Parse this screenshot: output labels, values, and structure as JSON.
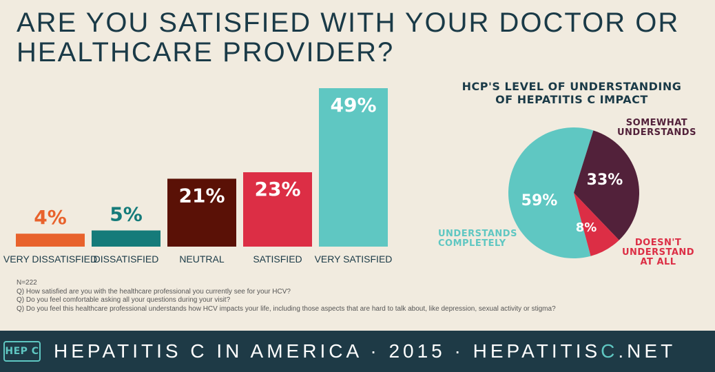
{
  "page": {
    "title_line1": "ARE YOU SATISFIED WITH YOUR DOCTOR OR",
    "title_line2": "HEALTHCARE PROVIDER?"
  },
  "colors": {
    "very_dissatisfied": "#e8622c",
    "dissatisfied": "#157b7a",
    "neutral": "#5a1106",
    "satisfied": "#dc2e45",
    "very_satisfied": "#5fc7c2",
    "pie_completely": "#5fc7c2",
    "pie_somewhat": "#52213a",
    "pie_not": "#dc2e45",
    "dark": "#1a3a47"
  },
  "chart_data": [
    {
      "type": "bar",
      "title": "ARE YOU SATISFIED WITH YOUR DOCTOR OR HEALTHCARE PROVIDER?",
      "categories": [
        "VERY DISSATISFIED",
        "DISSATISFIED",
        "NEUTRAL",
        "SATISFIED",
        "VERY SATISFIED"
      ],
      "values": [
        4,
        5,
        21,
        23,
        49
      ],
      "value_labels": [
        "4%",
        "5%",
        "21%",
        "23%",
        "49%"
      ],
      "unit": "%",
      "ylim": [
        0,
        49
      ]
    },
    {
      "type": "pie",
      "title_line1": "HCP'S LEVEL OF UNDERSTANDING",
      "title_line2": "OF HEPATITIS C IMPACT",
      "slices": [
        {
          "label_line1": "UNDERSTANDS",
          "label_line2": "COMPLETELY",
          "label_line3": "",
          "value": 59,
          "value_label": "59%"
        },
        {
          "label_line1": "SOMEWHAT",
          "label_line2": "UNDERSTANDS",
          "label_line3": "",
          "value": 33,
          "value_label": "33%"
        },
        {
          "label_line1": "DOESN'T",
          "label_line2": "UNDERSTAND",
          "label_line3": "AT ALL",
          "value": 8,
          "value_label": "8%"
        }
      ]
    }
  ],
  "notes": {
    "n": "N=222",
    "q1": "Q) How satisfied are you with the healthcare professional you currently see for your HCV?",
    "q2": "Q) Do you feel comfortable asking all your questions during your visit?",
    "q3": "Q) Do you feel this healthcare professional understands how HCV impacts your life, including those aspects that are hard to talk about, like depression, sexual activity or stigma?"
  },
  "footer": {
    "logo": "HEP C",
    "text_part1": "HEPATITIS C IN AMERICA · 2015 · HEPATITIS",
    "text_accent": "C",
    "text_part2": ".NET"
  }
}
